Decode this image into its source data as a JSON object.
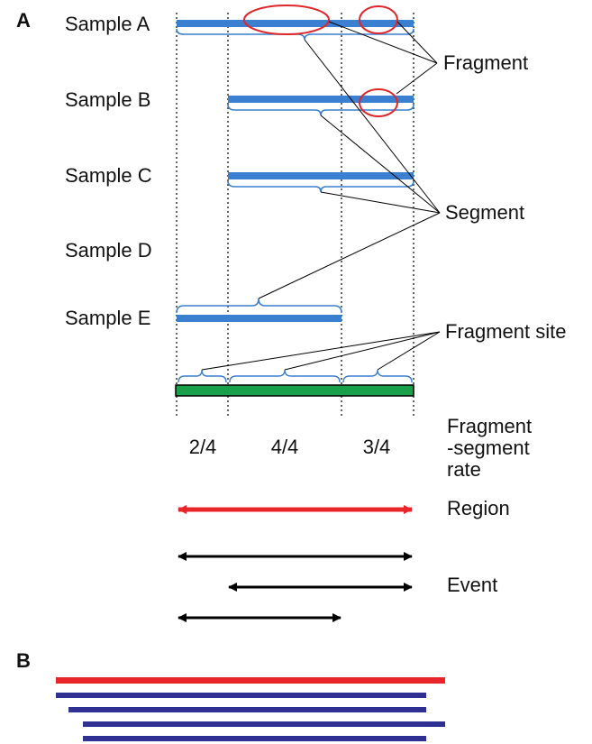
{
  "panel_a": {
    "label": "A",
    "samples": [
      "Sample A",
      "Sample B",
      "Sample C",
      "Sample D",
      "Sample E"
    ],
    "callouts": {
      "fragment": "Fragment",
      "segment": "Segment",
      "fragment_site": "Fragment site"
    },
    "rates": [
      "2/4",
      "4/4",
      "3/4"
    ],
    "rate_label": [
      "Fragment",
      "-segment",
      "rate"
    ],
    "region_label": "Region",
    "event_label": "Event"
  },
  "panel_b": {
    "label": "B"
  },
  "colors": {
    "segment_blue": "#3a7fd0",
    "bracket_blue": "#3a7fd0",
    "ellipse_red": "#e0262a",
    "region_red": "#e8262a",
    "site_bar_green": "#1aa04a",
    "panel_b_red": "#e8262a",
    "panel_b_navy": "#2e3192"
  }
}
